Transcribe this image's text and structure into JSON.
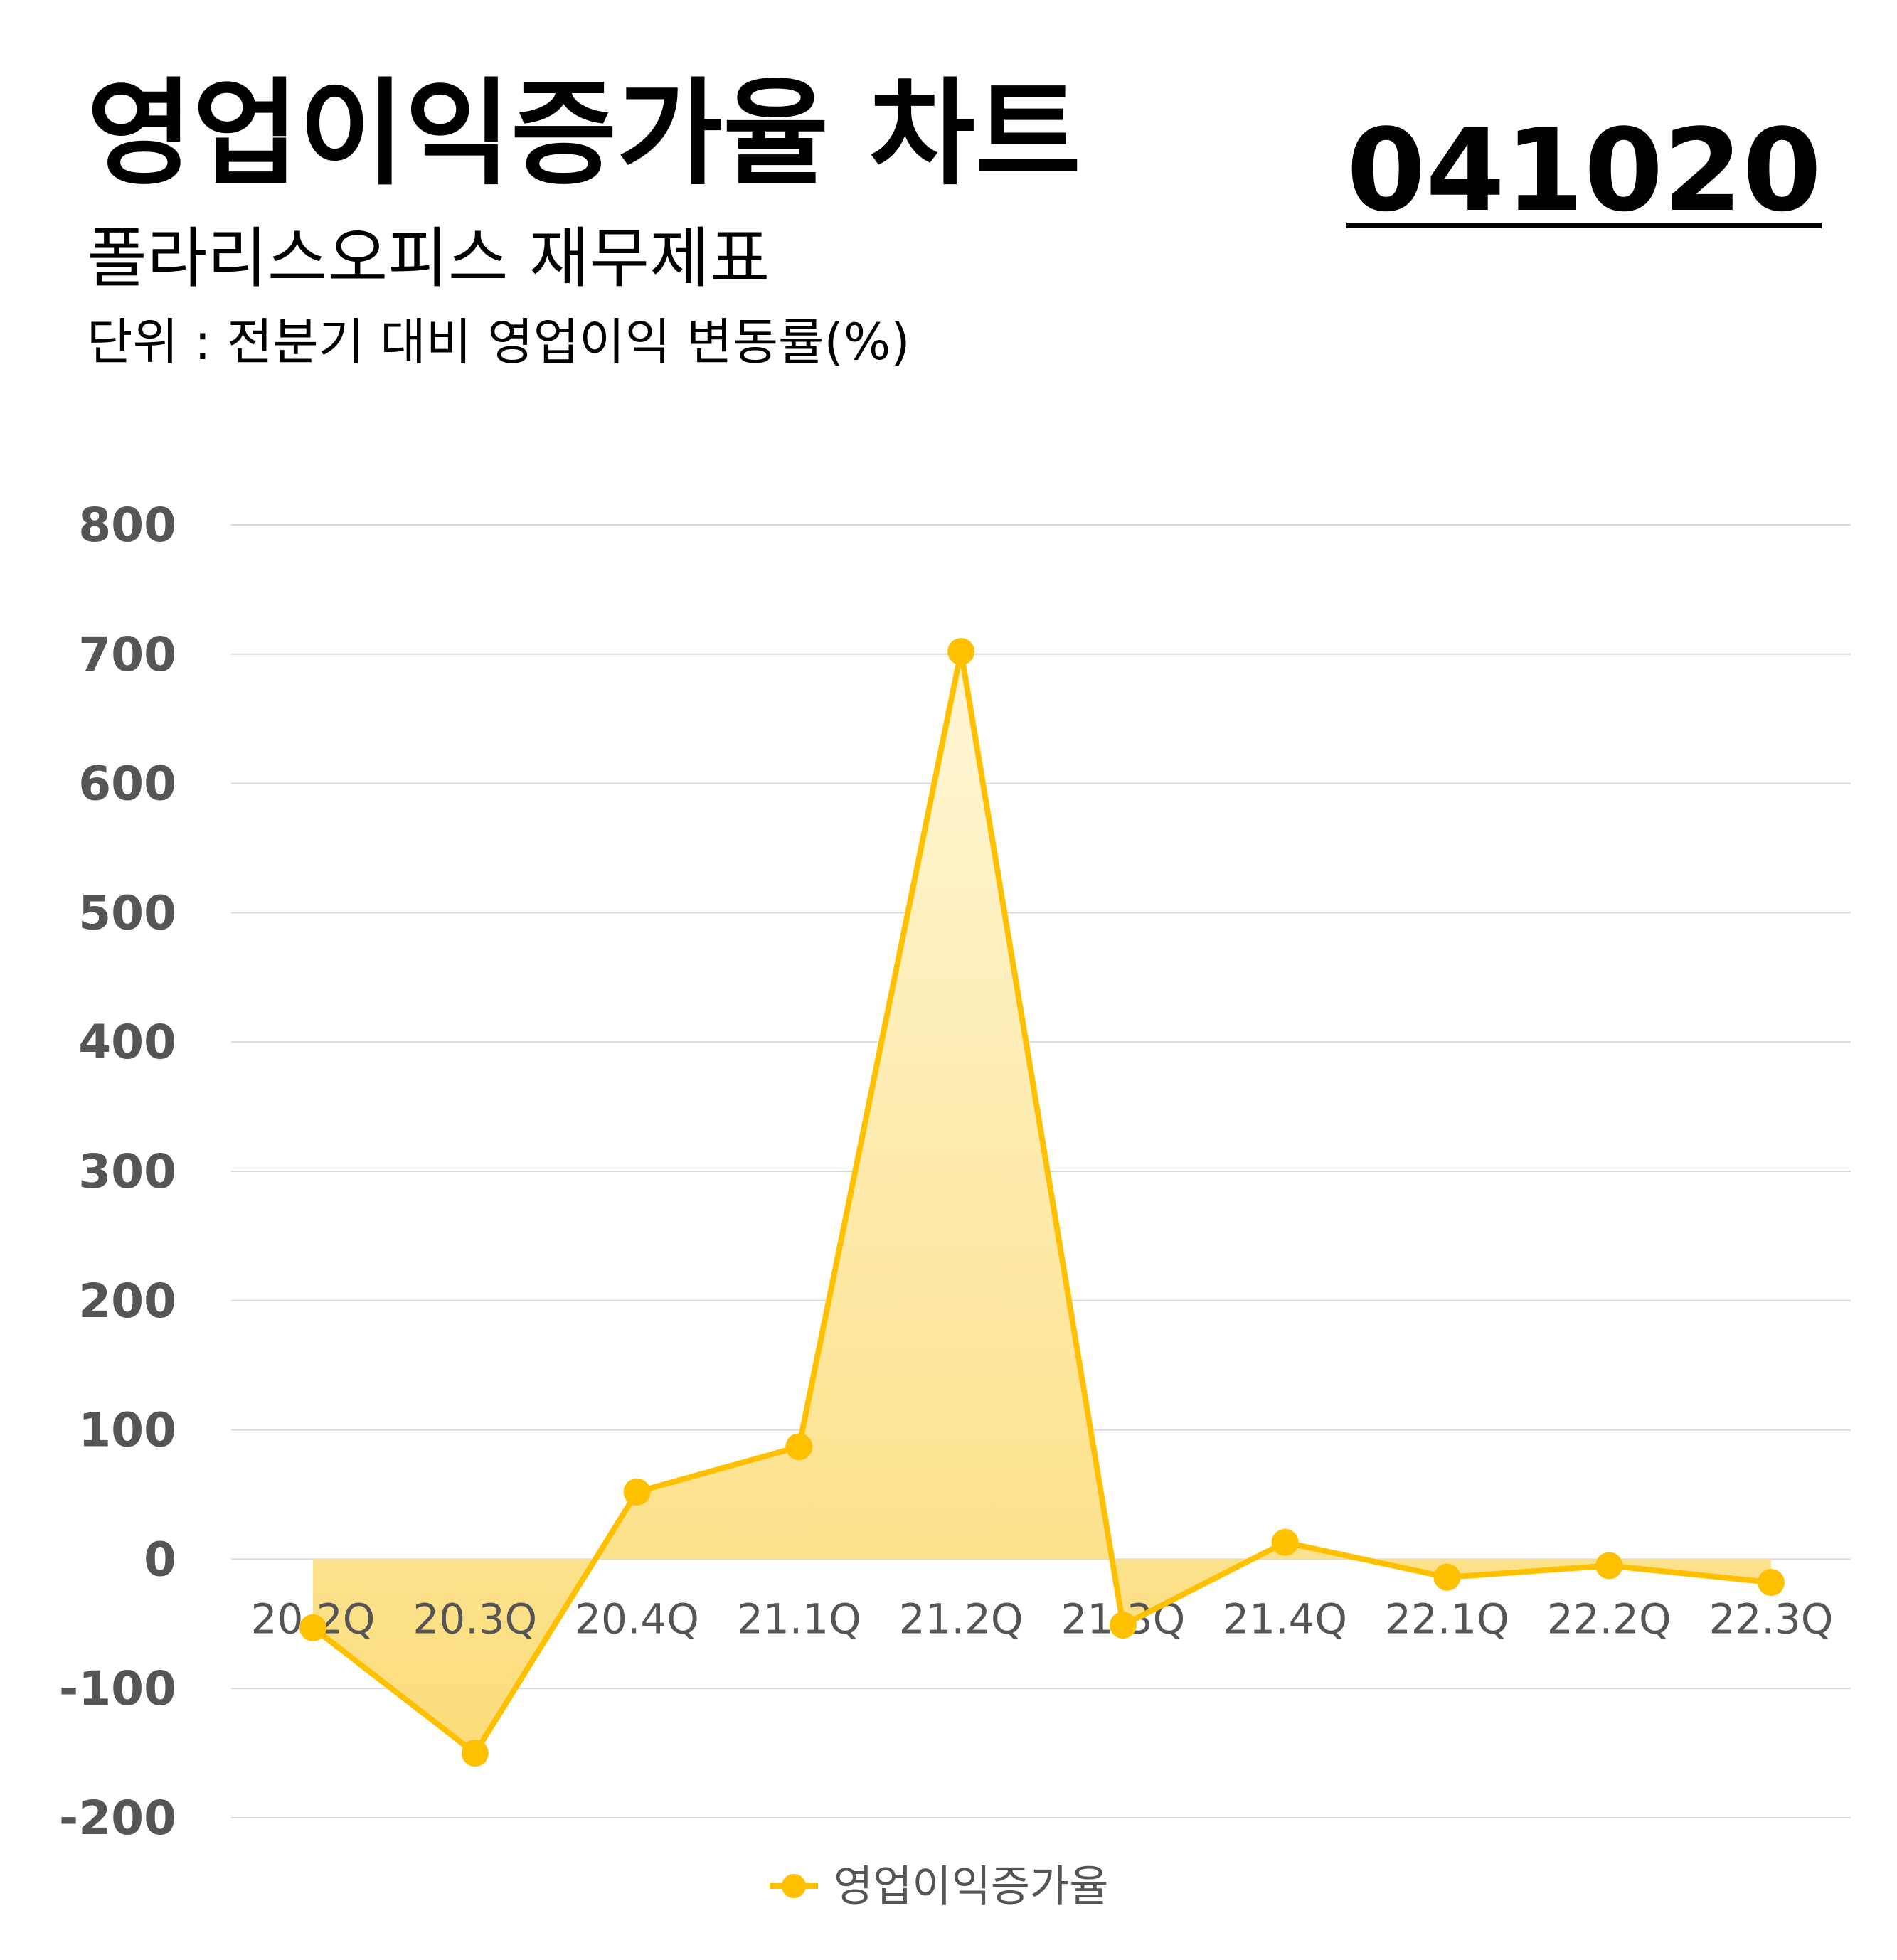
{
  "header": {
    "title": "영업이익증가율 차트",
    "code": "041020",
    "subtitle": "폴라리스오피스 재무제표",
    "unit": "단위 : 전분기 대비 영업이익 변동률(%)"
  },
  "colors": {
    "line": "#FFC000",
    "fill_top": "#FFF6D6",
    "fill_bottom": "#FCDD7C",
    "grid": "#D9D9D9",
    "tick_text": "#555555",
    "title_text": "#000000"
  },
  "chart_data": {
    "type": "area",
    "categories": [
      "20.2Q",
      "20.3Q",
      "20.4Q",
      "21.1Q",
      "21.2Q",
      "21.3Q",
      "21.4Q",
      "22.1Q",
      "22.2Q",
      "22.3Q"
    ],
    "series": [
      {
        "name": "영업이익증가율",
        "values": [
          -53,
          -150,
          52,
          87,
          702,
          -51,
          13,
          -14,
          -5,
          -18
        ]
      }
    ],
    "ylim": [
      -200,
      800
    ],
    "yticks": [
      800,
      700,
      600,
      500,
      400,
      300,
      200,
      100,
      0,
      -100,
      -200
    ],
    "grid": true,
    "legend_position": "bottom-center",
    "markers": true
  }
}
